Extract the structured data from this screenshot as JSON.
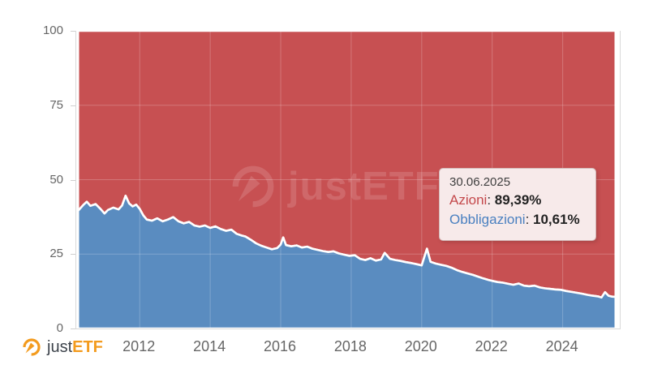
{
  "branding": {
    "logo_just": "just",
    "logo_etf": "ETF",
    "logo_orange": "#f39b1e",
    "logo_dark": "#3d434b"
  },
  "watermark": {
    "text": "justETF"
  },
  "tooltip": {
    "date": "30.06.2025",
    "background": "#f7eaea",
    "border_color": "#d3b6b5",
    "rows": [
      {
        "label": "Azioni",
        "value": "89,39%",
        "color": "#c4494c"
      },
      {
        "label": "Obbligazioni",
        "value": "10,61%",
        "color": "#4a80c0"
      }
    ]
  },
  "chart_data": {
    "type": "area",
    "stacking": "percent",
    "title": "",
    "xlabel": "",
    "ylabel": "",
    "grid": true,
    "grid_color_over_area": "rgba(255,255,255,0.22)",
    "boundary_line_color": "#ffffff",
    "x_range": [
      2010.2,
      2025.62
    ],
    "y_range": [
      0,
      100
    ],
    "x_ticks": [
      2012,
      2014,
      2016,
      2018,
      2020,
      2022,
      2024
    ],
    "y_ticks": [
      0,
      25,
      50,
      75,
      100
    ],
    "x": [
      2010.25,
      2010.4,
      2010.5,
      2010.6,
      2010.75,
      2010.9,
      2011.0,
      2011.1,
      2011.25,
      2011.4,
      2011.5,
      2011.6,
      2011.7,
      2011.8,
      2011.9,
      2012.0,
      2012.1,
      2012.2,
      2012.35,
      2012.5,
      2012.65,
      2012.8,
      2012.95,
      2013.1,
      2013.25,
      2013.4,
      2013.55,
      2013.7,
      2013.85,
      2014.0,
      2014.15,
      2014.3,
      2014.45,
      2014.6,
      2014.75,
      2014.9,
      2015.0,
      2015.15,
      2015.3,
      2015.45,
      2015.6,
      2015.75,
      2015.9,
      2016.0,
      2016.07,
      2016.15,
      2016.3,
      2016.45,
      2016.6,
      2016.75,
      2016.9,
      2017.05,
      2017.2,
      2017.35,
      2017.5,
      2017.65,
      2017.8,
      2017.95,
      2018.1,
      2018.25,
      2018.4,
      2018.55,
      2018.7,
      2018.85,
      2018.95,
      2019.1,
      2019.25,
      2019.4,
      2019.55,
      2019.7,
      2019.85,
      2020.0,
      2020.15,
      2020.25,
      2020.4,
      2020.55,
      2020.7,
      2020.85,
      2021.0,
      2021.15,
      2021.3,
      2021.45,
      2021.6,
      2021.75,
      2021.9,
      2022.0,
      2022.15,
      2022.3,
      2022.45,
      2022.6,
      2022.75,
      2022.9,
      2023.05,
      2023.2,
      2023.35,
      2023.5,
      2023.65,
      2023.8,
      2023.95,
      2024.1,
      2024.25,
      2024.4,
      2024.55,
      2024.7,
      2024.85,
      2025.0,
      2025.1,
      2025.2,
      2025.3,
      2025.4,
      2025.5
    ],
    "series": [
      {
        "name": "Azioni",
        "color": "#c75052",
        "values": [
          60.5,
          58.5,
          57.4,
          58.8,
          58.2,
          60.0,
          61.4,
          60.2,
          59.4,
          60.0,
          58.7,
          55.4,
          58.0,
          59.0,
          58.4,
          59.8,
          62.0,
          63.4,
          63.8,
          63.0,
          64.0,
          63.4,
          62.6,
          64.0,
          64.7,
          64.2,
          65.4,
          65.8,
          65.4,
          66.2,
          65.7,
          66.6,
          67.2,
          66.8,
          68.2,
          68.8,
          69.1,
          70.2,
          71.4,
          72.2,
          72.8,
          73.4,
          73.0,
          71.8,
          69.4,
          72.0,
          72.4,
          72.1,
          72.8,
          72.5,
          73.2,
          73.6,
          74.0,
          74.3,
          74.1,
          74.8,
          75.2,
          75.6,
          75.4,
          76.6,
          77.0,
          76.4,
          77.2,
          76.8,
          74.6,
          76.6,
          77.0,
          77.3,
          77.7,
          78.0,
          78.4,
          78.8,
          73.2,
          77.6,
          78.2,
          78.6,
          79.0,
          79.6,
          80.4,
          81.0,
          81.5,
          82.0,
          82.6,
          83.2,
          83.7,
          84.0,
          84.4,
          84.6,
          85.0,
          85.3,
          84.9,
          85.6,
          85.8,
          85.6,
          86.2,
          86.5,
          86.7,
          86.9,
          87.0,
          87.4,
          87.7,
          88.0,
          88.3,
          88.7,
          89.0,
          89.2,
          89.6,
          87.8,
          89.0,
          89.3,
          89.39
        ]
      },
      {
        "name": "Obbligazioni",
        "color": "#5a8cc0",
        "values": [
          39.5,
          41.5,
          42.6,
          41.2,
          41.8,
          40.0,
          38.6,
          39.8,
          40.6,
          40.0,
          41.3,
          44.6,
          42.0,
          41.0,
          41.6,
          40.2,
          38.0,
          36.6,
          36.2,
          37.0,
          36.0,
          36.6,
          37.4,
          36.0,
          35.3,
          35.8,
          34.6,
          34.2,
          34.6,
          33.8,
          34.3,
          33.4,
          32.8,
          33.2,
          31.8,
          31.2,
          30.9,
          29.8,
          28.6,
          27.8,
          27.2,
          26.6,
          27.0,
          28.2,
          30.6,
          28.0,
          27.6,
          27.9,
          27.2,
          27.5,
          26.8,
          26.4,
          26.0,
          25.7,
          25.9,
          25.2,
          24.8,
          24.4,
          24.6,
          23.4,
          23.0,
          23.6,
          22.8,
          23.2,
          25.4,
          23.4,
          23.0,
          22.7,
          22.3,
          22.0,
          21.6,
          21.2,
          26.8,
          22.4,
          21.8,
          21.4,
          21.0,
          20.4,
          19.6,
          19.0,
          18.5,
          18.0,
          17.4,
          16.8,
          16.3,
          16.0,
          15.6,
          15.4,
          15.0,
          14.7,
          15.1,
          14.4,
          14.2,
          14.4,
          13.8,
          13.5,
          13.3,
          13.1,
          13.0,
          12.6,
          12.3,
          12.0,
          11.7,
          11.3,
          11.0,
          10.8,
          10.4,
          12.2,
          11.0,
          10.7,
          10.61
        ]
      }
    ],
    "last_point": {
      "date": "30.06.2025",
      "Azioni": "89,39%",
      "Obbligazioni": "10,61%"
    }
  }
}
